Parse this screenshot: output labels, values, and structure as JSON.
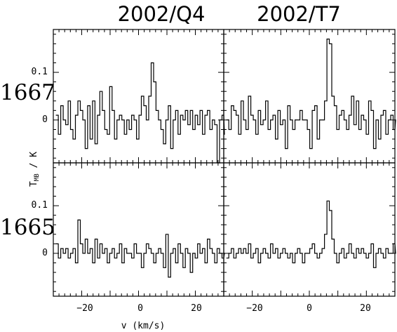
{
  "titles": {
    "col1": "2002/Q4",
    "col2": "2002/T7"
  },
  "rows": {
    "top": "1667",
    "bottom": "1665"
  },
  "axes": {
    "xlabel": "v (km/s)",
    "ylabel_main": "T",
    "ylabel_sub": "MB",
    "ylabel_rest": " / K",
    "x_tick_labels": [
      "−20",
      "0",
      "20"
    ],
    "y_tick_labels": [
      "0.1",
      "0"
    ]
  },
  "chart_data": [
    {
      "type": "line",
      "subtype": "step",
      "panel": "1667 / 2002/Q4",
      "xlim": [
        -30,
        30
      ],
      "ylim": [
        -0.09,
        0.19
      ],
      "x_start": -29.1,
      "channel_width": 0.86,
      "values": [
        0.01,
        -0.03,
        0.03,
        0.0,
        -0.01,
        0.04,
        -0.02,
        -0.04,
        0.01,
        0.04,
        0.02,
        0.0,
        -0.06,
        0.03,
        -0.04,
        0.04,
        -0.05,
        0.01,
        0.06,
        0.02,
        -0.02,
        -0.03,
        0.07,
        0.02,
        -0.04,
        0.0,
        0.01,
        0.0,
        -0.03,
        0.0,
        -0.02,
        0.01,
        0.0,
        -0.04,
        0.01,
        0.05,
        0.03,
        0.0,
        0.05,
        0.12,
        0.08,
        0.02,
        0.0,
        -0.02,
        -0.05,
        0.0,
        0.03,
        -0.06,
        0.0,
        0.02,
        -0.03,
        0.01,
        0.0,
        0.02,
        -0.01,
        0.02,
        -0.02,
        0.01,
        -0.01,
        0.02,
        -0.03,
        0.01,
        0.02,
        -0.02,
        0.0,
        -0.01,
        -0.09,
        0.0,
        0.01,
        -0.03
      ]
    },
    {
      "type": "line",
      "subtype": "step",
      "panel": "1667 / 2002/T7",
      "xlim": [
        -30,
        30
      ],
      "ylim": [
        -0.09,
        0.19
      ],
      "x_start": -29.1,
      "channel_width": 0.86,
      "values": [
        0.0,
        -0.02,
        0.03,
        0.02,
        0.01,
        -0.03,
        0.04,
        0.0,
        -0.02,
        0.05,
        0.01,
        0.0,
        -0.03,
        0.02,
        -0.01,
        0.0,
        0.04,
        -0.02,
        0.0,
        0.01,
        -0.04,
        0.02,
        -0.01,
        0.0,
        -0.06,
        0.03,
        0.0,
        -0.02,
        0.0,
        0.0,
        0.02,
        0.0,
        0.0,
        -0.02,
        -0.06,
        0.02,
        0.03,
        -0.04,
        0.0,
        0.0,
        0.04,
        0.17,
        0.16,
        0.05,
        0.03,
        -0.02,
        0.01,
        0.02,
        0.0,
        -0.02,
        0.01,
        0.05,
        -0.01,
        0.04,
        -0.02,
        0.01,
        0.0,
        -0.03,
        0.04,
        0.02,
        -0.06,
        0.0,
        -0.04,
        0.01,
        0.02,
        -0.03,
        0.0,
        0.01,
        -0.02,
        0.0
      ]
    },
    {
      "type": "line",
      "subtype": "step",
      "panel": "1665 / 2002/Q4",
      "xlim": [
        -30,
        30
      ],
      "ylim": [
        -0.09,
        0.19
      ],
      "x_start": -29.1,
      "channel_width": 0.86,
      "values": [
        0.02,
        -0.01,
        0.01,
        0.0,
        0.01,
        -0.01,
        0.0,
        0.01,
        -0.02,
        0.07,
        0.02,
        0.0,
        0.03,
        0.0,
        0.01,
        -0.02,
        0.03,
        -0.01,
        0.02,
        0.0,
        0.01,
        -0.02,
        0.0,
        0.01,
        -0.01,
        0.0,
        0.02,
        -0.02,
        0.01,
        0.0,
        0.0,
        -0.01,
        0.02,
        0.0,
        0.0,
        -0.03,
        0.0,
        0.02,
        0.01,
        0.0,
        -0.02,
        0.0,
        0.01,
        0.0,
        -0.03,
        0.04,
        -0.05,
        0.0,
        0.01,
        -0.02,
        0.02,
        0.0,
        -0.03,
        0.01,
        0.0,
        -0.04,
        0.0,
        -0.01,
        0.02,
        0.0,
        0.01,
        -0.02,
        0.03,
        0.01,
        0.0,
        -0.02,
        0.01,
        0.0,
        -0.01,
        0.0
      ]
    },
    {
      "type": "line",
      "subtype": "step",
      "panel": "1665 / 2002/T7",
      "xlim": [
        -30,
        30
      ],
      "ylim": [
        -0.09,
        0.19
      ],
      "x_start": -29.1,
      "channel_width": 0.86,
      "values": [
        -0.01,
        0.0,
        0.01,
        -0.01,
        0.0,
        0.01,
        0.0,
        0.01,
        0.0,
        0.02,
        -0.01,
        0.0,
        0.01,
        -0.02,
        0.0,
        0.01,
        0.0,
        -0.01,
        0.02,
        0.0,
        0.01,
        -0.01,
        0.0,
        0.01,
        0.0,
        -0.01,
        0.0,
        -0.02,
        0.0,
        0.01,
        0.0,
        -0.02,
        0.0,
        0.0,
        0.01,
        0.02,
        0.0,
        -0.01,
        0.0,
        0.01,
        0.04,
        0.11,
        0.09,
        0.03,
        0.0,
        -0.02,
        0.0,
        0.01,
        -0.01,
        0.0,
        0.02,
        0.0,
        -0.01,
        0.01,
        0.0,
        0.01,
        0.0,
        -0.01,
        0.0,
        0.02,
        -0.03,
        0.0,
        0.01,
        0.0,
        -0.01,
        0.01,
        0.0,
        0.0,
        0.02,
        0.0
      ]
    }
  ]
}
